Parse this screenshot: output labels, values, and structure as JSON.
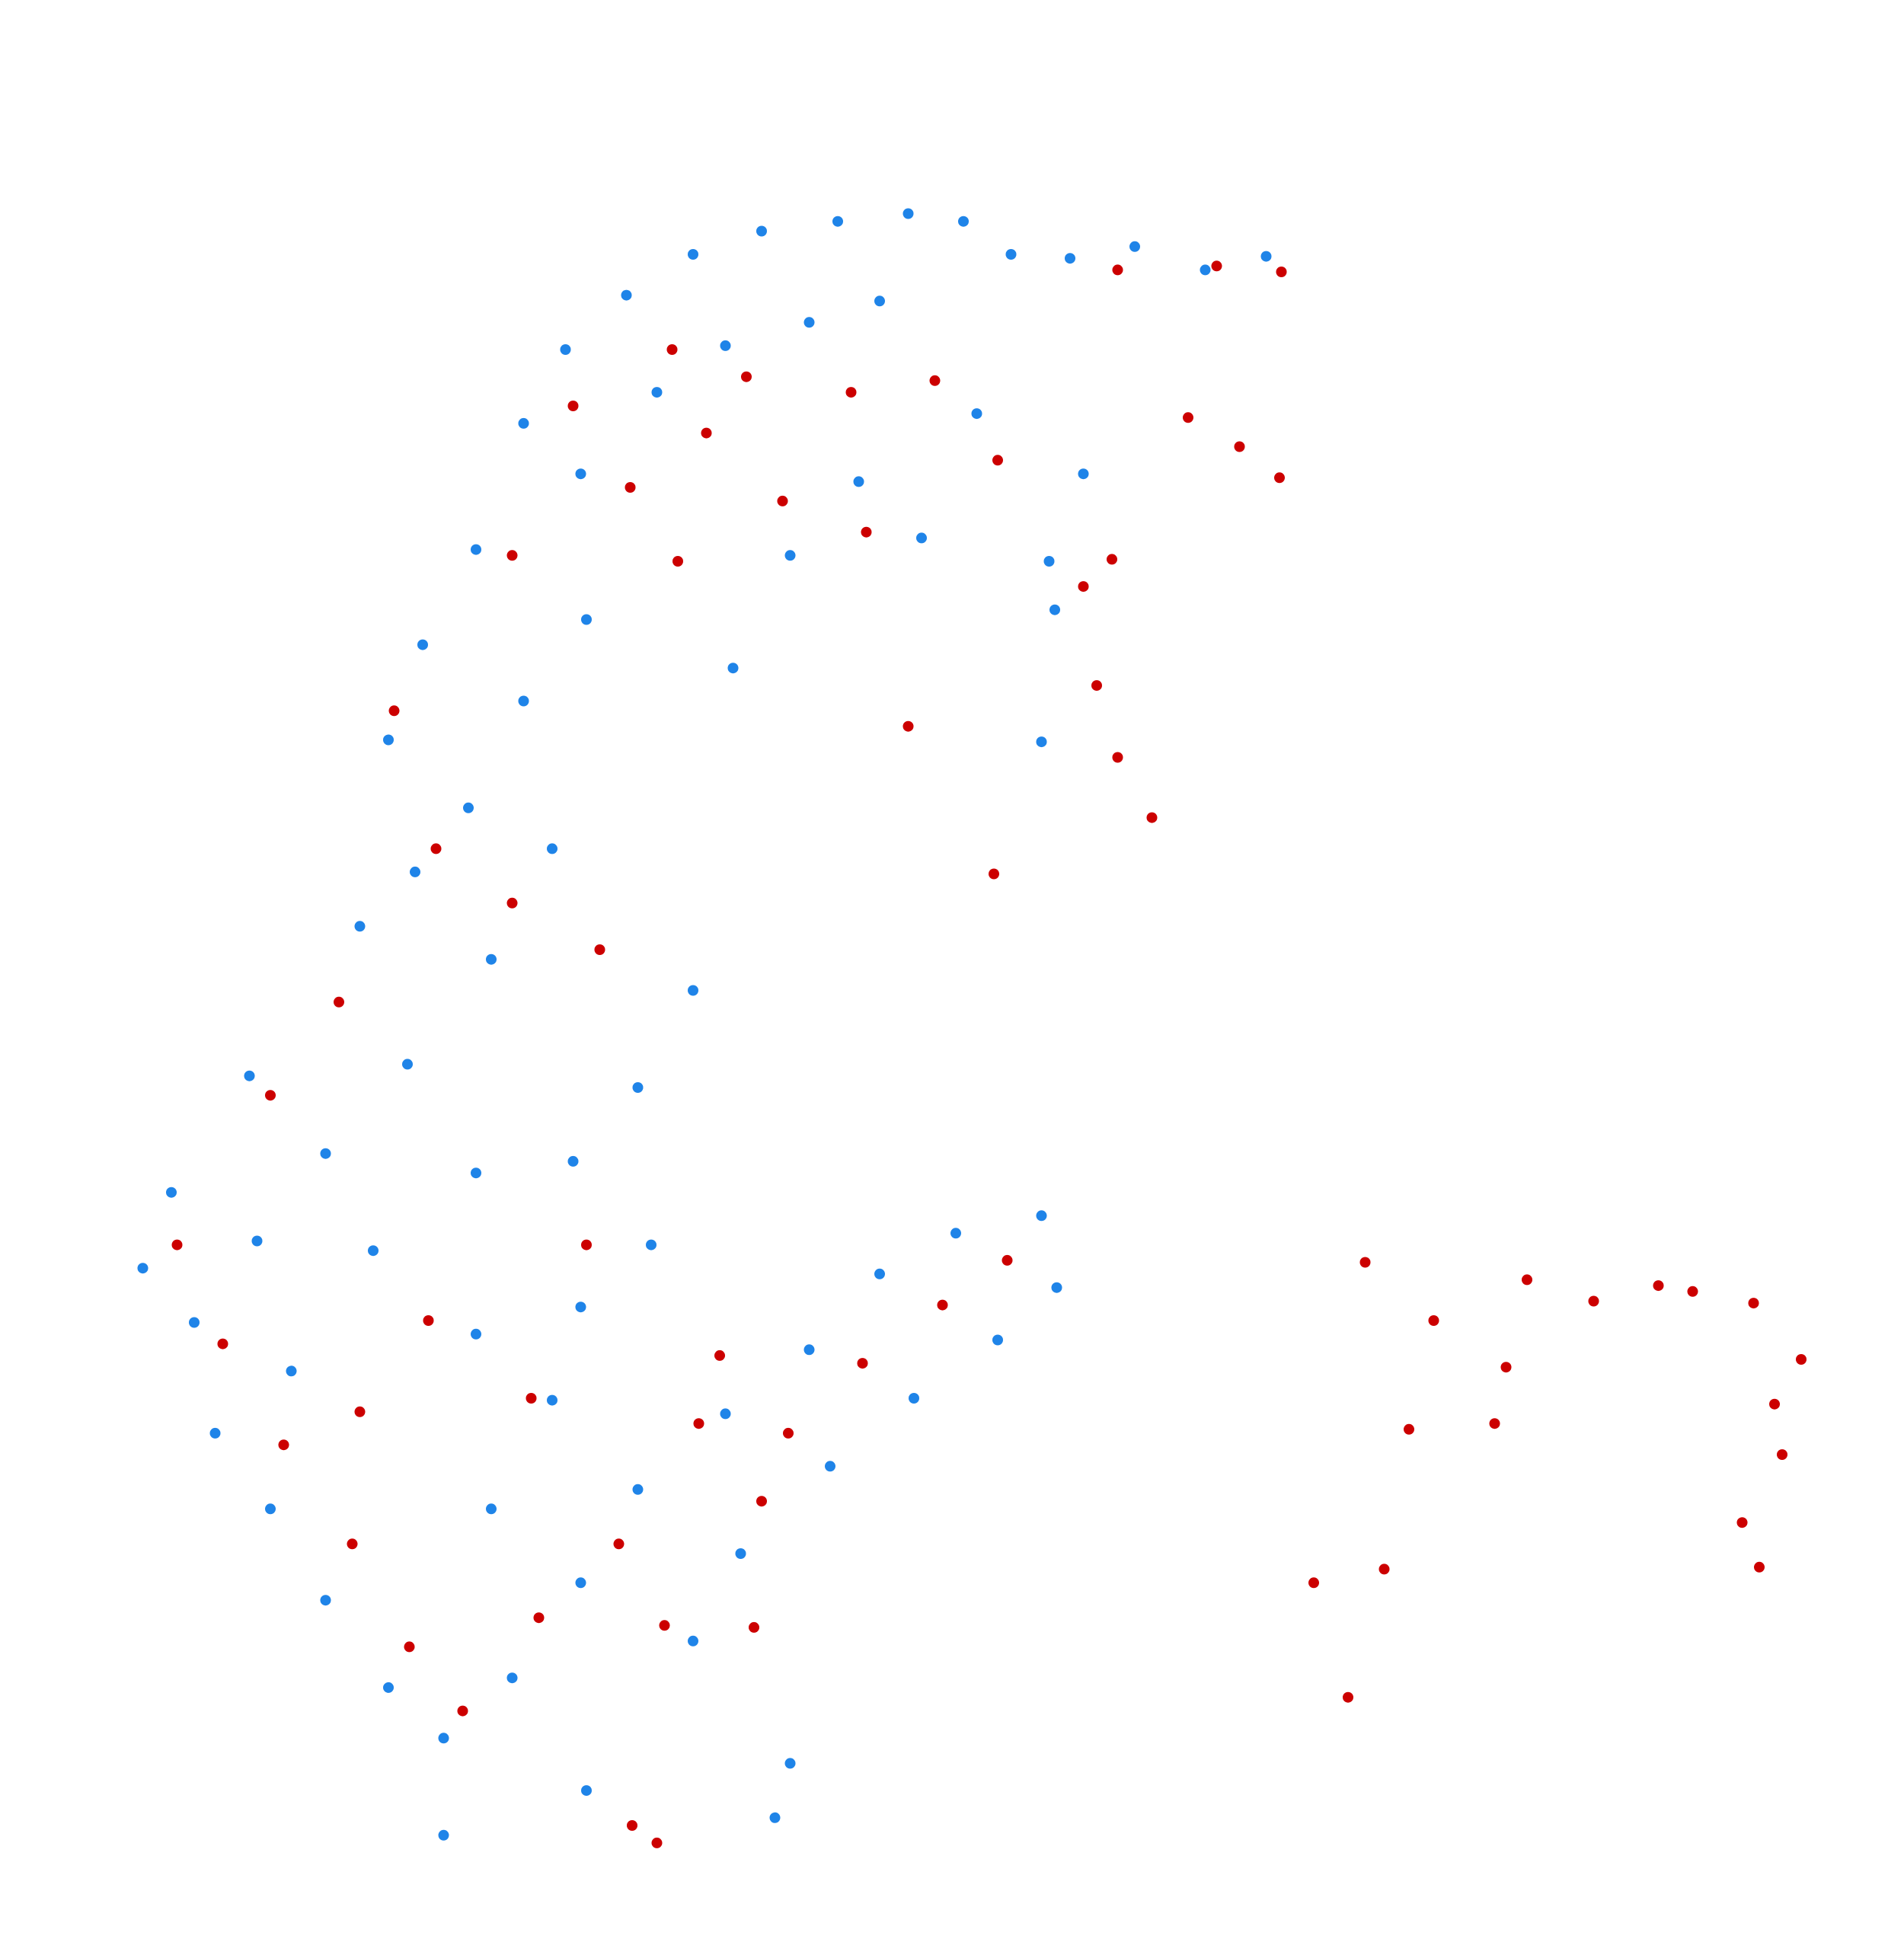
{
  "chart_data": {
    "type": "scatter",
    "title": "",
    "xlabel": "",
    "ylabel": "",
    "axes_visible": false,
    "grid": false,
    "legend": "none",
    "xlim": [
      0,
      100
    ],
    "ylim": [
      0,
      100
    ],
    "colors": {
      "blue": "#1f84e8",
      "red": "#cc0000",
      "background": "#ffffff"
    },
    "series": [
      {
        "color": "#1f84e8",
        "values": [
          [
            25.0,
            71.7
          ],
          [
            27.5,
            78.2
          ],
          [
            29.7,
            82.0
          ],
          [
            32.9,
            84.8
          ],
          [
            36.4,
            86.9
          ],
          [
            40.0,
            88.1
          ],
          [
            44.0,
            88.6
          ],
          [
            47.7,
            89.0
          ],
          [
            50.6,
            88.6
          ],
          [
            53.1,
            86.9
          ],
          [
            30.5,
            75.6
          ],
          [
            34.5,
            79.8
          ],
          [
            38.1,
            82.2
          ],
          [
            42.5,
            83.4
          ],
          [
            46.2,
            84.5
          ],
          [
            20.4,
            61.9
          ],
          [
            22.2,
            66.8
          ],
          [
            24.6,
            58.4
          ],
          [
            27.5,
            63.9
          ],
          [
            30.8,
            68.1
          ],
          [
            18.9,
            52.3
          ],
          [
            21.8,
            55.1
          ],
          [
            25.8,
            50.6
          ],
          [
            29.0,
            56.3
          ],
          [
            13.1,
            44.6
          ],
          [
            9.0,
            38.6
          ],
          [
            7.5,
            34.7
          ],
          [
            10.2,
            31.9
          ],
          [
            13.5,
            36.1
          ],
          [
            17.1,
            40.6
          ],
          [
            21.4,
            45.2
          ],
          [
            25.0,
            39.6
          ],
          [
            11.3,
            26.2
          ],
          [
            14.2,
            22.3
          ],
          [
            17.1,
            17.6
          ],
          [
            20.4,
            13.1
          ],
          [
            23.3,
            10.5
          ],
          [
            26.9,
            13.6
          ],
          [
            30.5,
            18.5
          ],
          [
            33.5,
            23.3
          ],
          [
            29.0,
            27.9
          ],
          [
            36.4,
            15.5
          ],
          [
            38.9,
            20.0
          ],
          [
            43.6,
            24.5
          ],
          [
            48.0,
            28.0
          ],
          [
            52.4,
            31.0
          ],
          [
            55.5,
            33.7
          ],
          [
            23.3,
            5.5
          ],
          [
            40.7,
            6.4
          ],
          [
            41.5,
            9.2
          ],
          [
            30.5,
            32.7
          ],
          [
            25.0,
            31.3
          ],
          [
            34.2,
            35.9
          ],
          [
            38.1,
            27.2
          ],
          [
            42.5,
            30.5
          ],
          [
            46.2,
            34.4
          ],
          [
            50.2,
            36.5
          ],
          [
            54.7,
            37.4
          ],
          [
            38.5,
            65.6
          ],
          [
            41.5,
            71.4
          ],
          [
            45.1,
            75.2
          ],
          [
            48.4,
            72.3
          ],
          [
            51.3,
            78.7
          ],
          [
            56.2,
            86.7
          ],
          [
            59.6,
            87.3
          ],
          [
            63.3,
            86.1
          ],
          [
            66.5,
            86.8
          ],
          [
            56.9,
            75.6
          ],
          [
            55.1,
            71.1
          ],
          [
            54.7,
            61.8
          ],
          [
            55.4,
            68.6
          ],
          [
            36.4,
            49.0
          ],
          [
            33.5,
            44.0
          ],
          [
            30.1,
            40.2
          ],
          [
            15.3,
            29.4
          ],
          [
            19.6,
            35.6
          ],
          [
            25.8,
            22.3
          ],
          [
            30.8,
            7.8
          ]
        ]
      },
      {
        "color": "#cc0000",
        "values": [
          [
            26.9,
            71.4
          ],
          [
            30.1,
            79.1
          ],
          [
            35.3,
            82.0
          ],
          [
            39.2,
            80.6
          ],
          [
            33.1,
            74.9
          ],
          [
            37.1,
            77.7
          ],
          [
            44.7,
            79.8
          ],
          [
            49.1,
            80.4
          ],
          [
            35.6,
            71.1
          ],
          [
            41.1,
            74.2
          ],
          [
            45.5,
            72.6
          ],
          [
            52.4,
            76.3
          ],
          [
            58.7,
            86.1
          ],
          [
            63.9,
            86.3
          ],
          [
            67.3,
            86.0
          ],
          [
            62.4,
            78.5
          ],
          [
            65.1,
            77.0
          ],
          [
            67.2,
            75.4
          ],
          [
            58.4,
            71.2
          ],
          [
            56.9,
            69.8
          ],
          [
            57.6,
            64.7
          ],
          [
            58.7,
            61.0
          ],
          [
            60.5,
            57.9
          ],
          [
            47.7,
            62.6
          ],
          [
            52.2,
            55.0
          ],
          [
            20.7,
            63.4
          ],
          [
            22.9,
            56.3
          ],
          [
            26.9,
            53.5
          ],
          [
            31.5,
            51.1
          ],
          [
            17.8,
            48.4
          ],
          [
            14.2,
            43.6
          ],
          [
            9.3,
            35.9
          ],
          [
            11.7,
            30.8
          ],
          [
            14.9,
            25.6
          ],
          [
            18.5,
            20.5
          ],
          [
            21.5,
            15.2
          ],
          [
            24.3,
            11.9
          ],
          [
            28.3,
            16.7
          ],
          [
            32.5,
            20.5
          ],
          [
            34.9,
            16.3
          ],
          [
            36.7,
            26.7
          ],
          [
            41.4,
            26.2
          ],
          [
            45.3,
            29.8
          ],
          [
            49.5,
            32.8
          ],
          [
            52.9,
            35.1
          ],
          [
            37.8,
            30.2
          ],
          [
            40.0,
            22.7
          ],
          [
            30.8,
            35.9
          ],
          [
            27.9,
            28.0
          ],
          [
            22.5,
            32.0
          ],
          [
            18.9,
            27.3
          ],
          [
            39.6,
            16.2
          ],
          [
            33.2,
            6.0
          ],
          [
            34.5,
            5.1
          ],
          [
            71.7,
            35.0
          ],
          [
            75.3,
            32.0
          ],
          [
            79.1,
            29.6
          ],
          [
            78.5,
            26.7
          ],
          [
            74.0,
            26.4
          ],
          [
            72.7,
            19.2
          ],
          [
            69.0,
            18.5
          ],
          [
            70.8,
            12.6
          ],
          [
            88.9,
            33.5
          ],
          [
            92.1,
            32.9
          ],
          [
            94.6,
            30.0
          ],
          [
            93.2,
            27.7
          ],
          [
            93.6,
            25.1
          ],
          [
            91.5,
            21.6
          ],
          [
            87.1,
            33.8
          ],
          [
            83.7,
            33.0
          ],
          [
            80.2,
            34.1
          ],
          [
            92.4,
            19.3
          ]
        ]
      }
    ]
  }
}
